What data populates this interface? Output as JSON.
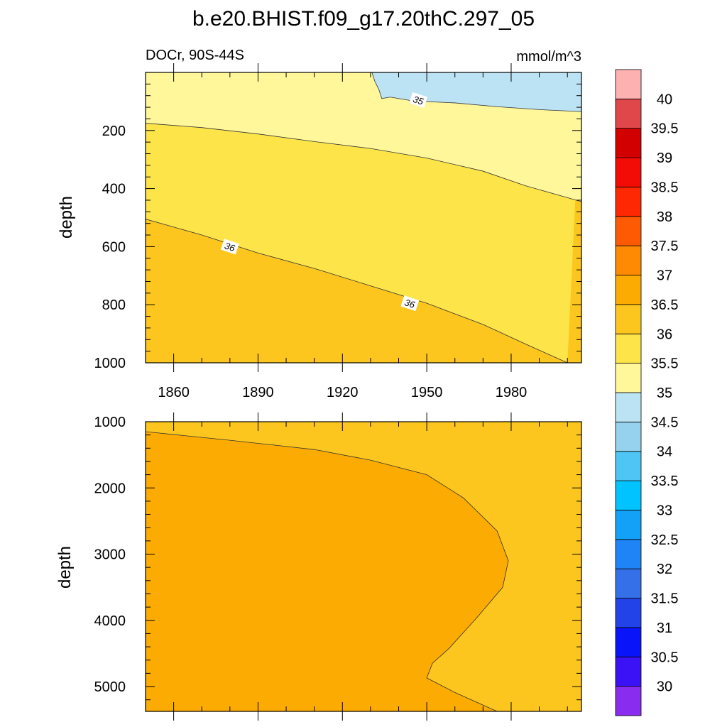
{
  "figure": {
    "title": "b.e20.BHIST.f09_g17.20thC.297_05",
    "left_subtitle": "DOCr, 90S-44S",
    "right_subtitle": "mmol/m^3"
  },
  "chart_data": [
    {
      "type": "contour",
      "panel": "upper",
      "ylabel": "depth",
      "xlabel": "",
      "x_ticks": [
        "1860",
        "1890",
        "1920",
        "1950",
        "1980"
      ],
      "y_ticks": [
        "200",
        "400",
        "600",
        "800",
        "1000"
      ],
      "xlim": [
        1850,
        2005
      ],
      "ylim": [
        0,
        1000
      ],
      "y_reversed": true,
      "contour_labels": [
        {
          "text": "35",
          "x": 1947,
          "y": 95
        },
        {
          "text": "36",
          "x": 1880,
          "y": 600
        },
        {
          "text": "36",
          "x": 1944,
          "y": 795
        }
      ],
      "regions": [
        {
          "band": "34.5-35",
          "color": "#bce3f4",
          "boundary": [
            [
              1930.5,
              0
            ],
            [
              1931.5,
              30
            ],
            [
              1933,
              60
            ],
            [
              1934,
              90
            ],
            [
              1937,
              85
            ],
            [
              1945,
              98
            ],
            [
              1960,
              105
            ],
            [
              1975,
              118
            ],
            [
              1990,
              128
            ],
            [
              2005,
              135
            ]
          ]
        },
        {
          "band": "35-35.5",
          "color": "#fff799",
          "boundary": [
            [
              1850,
              175
            ],
            [
              1870,
              190
            ],
            [
              1890,
              212
            ],
            [
              1910,
              238
            ],
            [
              1930,
              262
            ],
            [
              1950,
              295
            ],
            [
              1970,
              340
            ],
            [
              1985,
              390
            ],
            [
              2005,
              445
            ]
          ]
        },
        {
          "band": "35.5-36",
          "color": "#fde449",
          "boundary": [
            [
              1850,
              505
            ],
            [
              1870,
              560
            ],
            [
              1890,
              622
            ],
            [
              1910,
              675
            ],
            [
              1930,
              735
            ],
            [
              1950,
              795
            ],
            [
              1970,
              868
            ],
            [
              1985,
              935
            ],
            [
              2000,
              1000
            ]
          ]
        },
        {
          "band": "36-36.5",
          "color": "#fdc61f",
          "boundary": []
        }
      ]
    },
    {
      "type": "contour",
      "panel": "lower",
      "ylabel": "depth",
      "xlabel": "",
      "y_ticks": [
        "1000",
        "2000",
        "3000",
        "4000",
        "5000"
      ],
      "xlim": [
        1850,
        2005
      ],
      "ylim": [
        1000,
        5375
      ],
      "y_reversed": true,
      "regions": [
        {
          "band": "36-36.5",
          "color": "#fdc61f",
          "boundary": []
        },
        {
          "band": "36.5-37",
          "color": "#fcab02",
          "boundary": [
            [
              1850,
              1150
            ],
            [
              1880,
              1280
            ],
            [
              1910,
              1420
            ],
            [
              1930,
              1580
            ],
            [
              1950,
              1800
            ],
            [
              1963,
              2150
            ],
            [
              1975,
              2650
            ],
            [
              1979,
              3100
            ],
            [
              1977,
              3500
            ],
            [
              1968,
              3950
            ],
            [
              1958,
              4420
            ],
            [
              1952,
              4650
            ],
            [
              1950,
              4870
            ],
            [
              1960,
              5090
            ],
            [
              1975,
              5375
            ]
          ]
        }
      ]
    }
  ],
  "colorbar": {
    "levels": [
      "30",
      "30.5",
      "31",
      "31.5",
      "32",
      "32.5",
      "33",
      "33.5",
      "34",
      "34.5",
      "35",
      "35.5",
      "36",
      "36.5",
      "37",
      "37.5",
      "38",
      "38.5",
      "39",
      "39.5",
      "40"
    ],
    "colors": [
      "#8a2cf0",
      "#3a12f5",
      "#0a14f8",
      "#2243e8",
      "#3570e8",
      "#1f84f5",
      "#13a0f7",
      "#00c3ff",
      "#4ec5f4",
      "#96d1ee",
      "#bce3f4",
      "#fff799",
      "#fde449",
      "#fdc61f",
      "#fcab02",
      "#fd8a02",
      "#fe5a04",
      "#fe2802",
      "#f30b06",
      "#d30000",
      "#e0474a",
      "#feb1b1"
    ]
  }
}
